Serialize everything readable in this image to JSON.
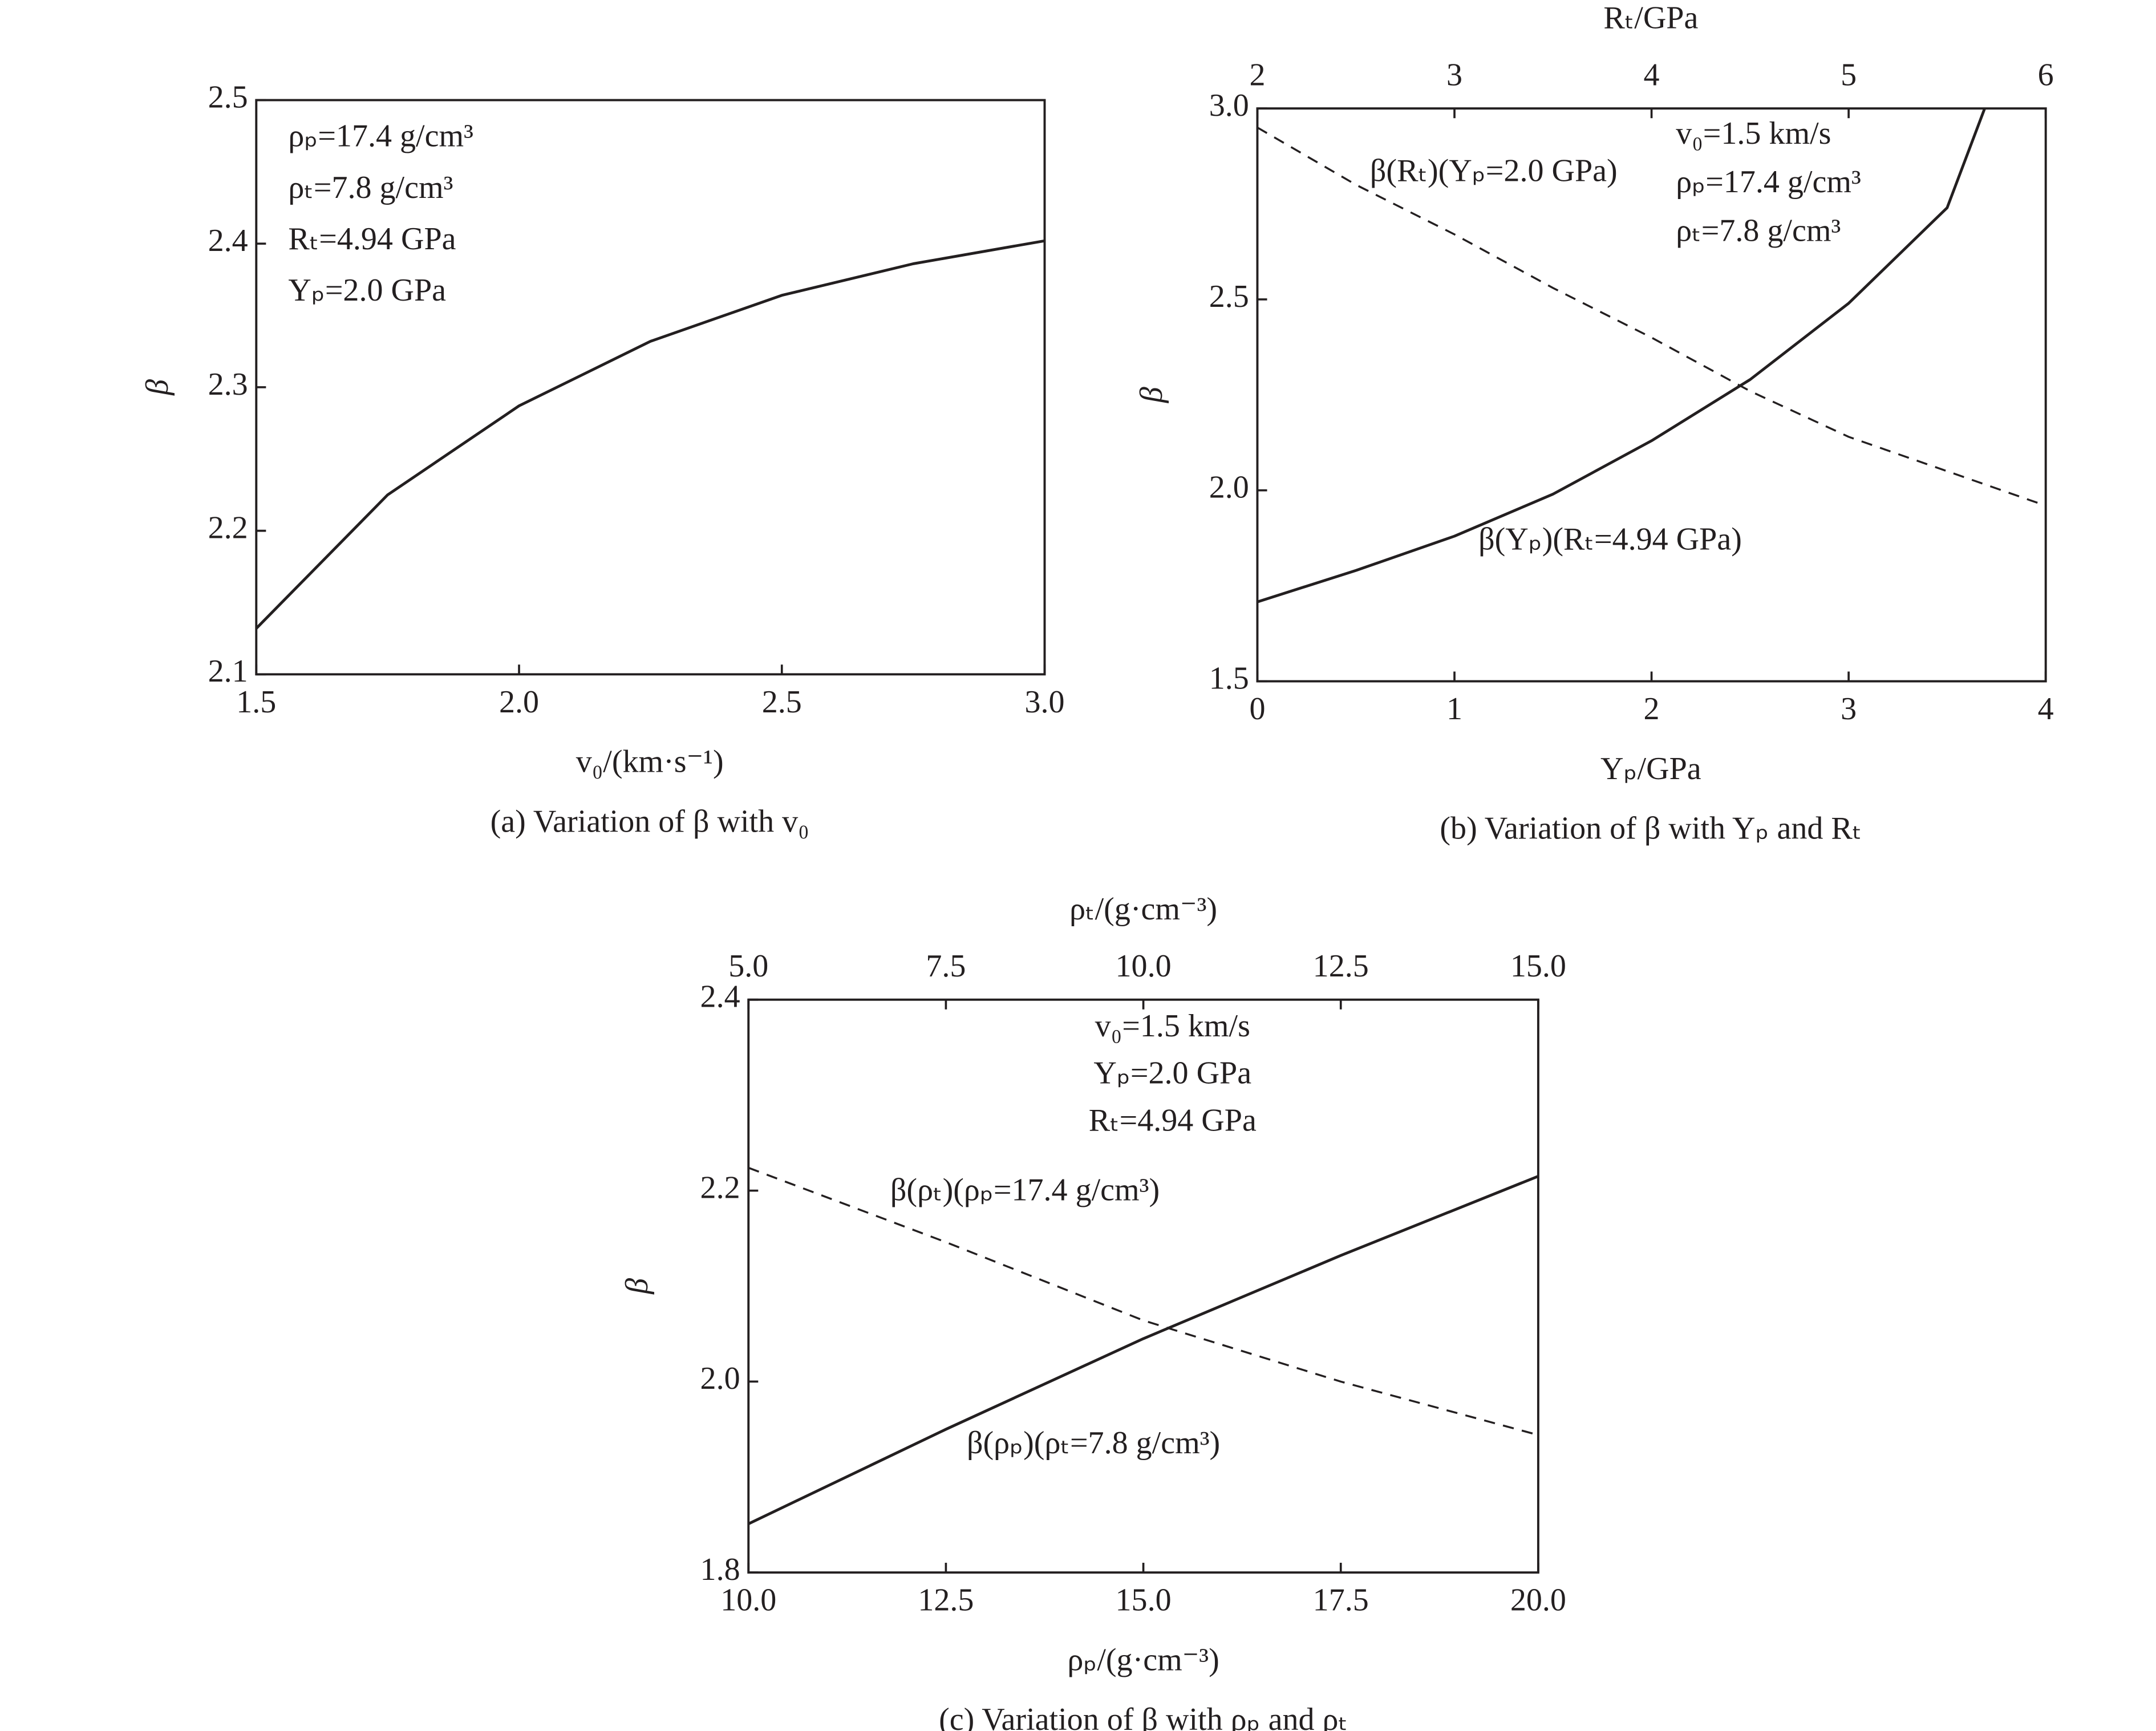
{
  "chart_data": [
    {
      "type": "line",
      "title": "(a) Variation of β with v₀",
      "xlabel": "v₀/(km·s⁻¹)",
      "ylabel": "β",
      "xlim": [
        1.5,
        3.0
      ],
      "xticks": [
        1.5,
        {
          "value": 2,
          "label": "2.0"
        },
        2.5,
        {
          "value": 3,
          "label": "3.0"
        }
      ],
      "ylim": [
        2.1,
        2.5
      ],
      "yticks": [
        2.1,
        2.2,
        2.3,
        2.4,
        2.5
      ],
      "annotations": [
        "ρₚ=17.4 g/cm³",
        "ρₜ=7.8 g/cm³",
        "Rₜ=4.94 GPa",
        "Yₚ=2.0 GPa"
      ],
      "series": [
        {
          "color": "#231f20",
          "dash": false,
          "x": [
            1.5,
            1.75,
            2.0,
            2.25,
            2.5,
            2.75,
            3.0
          ],
          "values": [
            2.132,
            2.225,
            2.287,
            2.332,
            2.364,
            2.386,
            2.402
          ]
        }
      ]
    },
    {
      "type": "line",
      "title": "(b) Variation of β with Yₚ and Rₜ",
      "xlabel": "Yₚ/GPa",
      "x2label": "Rₜ/GPa",
      "ylabel": "β",
      "xlim": [
        0,
        4
      ],
      "xticks": [
        0,
        1,
        2,
        3,
        4
      ],
      "x2lim": [
        2,
        6
      ],
      "x2ticks": [
        2,
        3,
        4,
        5,
        6
      ],
      "ylim": [
        1.5,
        3.0
      ],
      "yticks": [
        1.5,
        {
          "value": 2,
          "label": "2.0"
        },
        2.5,
        {
          "value": 3,
          "label": "3.0"
        }
      ],
      "annotations": [
        "v₀=1.5 km/s",
        "ρₚ=17.4 g/cm³",
        "ρₜ=7.8 g/cm³"
      ],
      "series": [
        {
          "name": "β(Rₜ)(Yₚ=2.0 GPa)",
          "color": "#231f20",
          "dash": true,
          "axis": "x2",
          "x": [
            2,
            2.5,
            3,
            3.5,
            4,
            4.5,
            5,
            5.5,
            6
          ],
          "values": [
            2.95,
            2.8,
            2.67,
            2.53,
            2.4,
            2.26,
            2.14,
            2.05,
            1.96
          ]
        },
        {
          "name": "β(Yₚ)(Rₜ=4.94 GPa)",
          "color": "#231f20",
          "dash": false,
          "x": [
            0,
            0.5,
            1,
            1.5,
            2,
            2.5,
            3,
            3.5,
            3.69
          ],
          "values": [
            1.708,
            1.79,
            1.88,
            1.99,
            2.13,
            2.29,
            2.49,
            2.74,
            3.0
          ]
        }
      ]
    },
    {
      "type": "line",
      "title": "(c) Variation of β with ρₚ and ρₜ",
      "xlabel": "ρₚ/(g·cm⁻³)",
      "x2label": "ρₜ/(g·cm⁻³)",
      "ylabel": "β",
      "xlim": [
        10,
        20
      ],
      "xticks": [
        {
          "value": 10,
          "label": "10.0"
        },
        12.5,
        {
          "value": 15,
          "label": "15.0"
        },
        17.5,
        {
          "value": 20,
          "label": "20.0"
        }
      ],
      "x2lim": [
        5,
        15
      ],
      "x2ticks": [
        {
          "value": 5,
          "label": "5.0"
        },
        7.5,
        {
          "value": 10,
          "label": "10.0"
        },
        12.5,
        {
          "value": 15,
          "label": "15.0"
        }
      ],
      "ylim": [
        1.8,
        2.4
      ],
      "yticks": [
        1.8,
        {
          "value": 2,
          "label": "2.0"
        },
        2.2,
        2.4
      ],
      "annotations": [
        "v₀=1.5 km/s",
        "Yₚ=2.0 GPa",
        "Rₜ=4.94 GPa"
      ],
      "series": [
        {
          "name": "β(ρₜ)(ρₚ=17.4 g/cm³)",
          "color": "#231f20",
          "dash": true,
          "axis": "x2",
          "x": [
            5,
            7.5,
            10,
            12.5,
            15
          ],
          "values": [
            2.224,
            2.146,
            2.064,
            2.0,
            1.944
          ]
        },
        {
          "name": "β(ρₚ)(ρₜ=7.8 g/cm³)",
          "color": "#231f20",
          "dash": false,
          "x": [
            10,
            12.5,
            15,
            17.5,
            20
          ],
          "values": [
            1.851,
            1.95,
            2.045,
            2.132,
            2.215
          ]
        }
      ]
    }
  ]
}
